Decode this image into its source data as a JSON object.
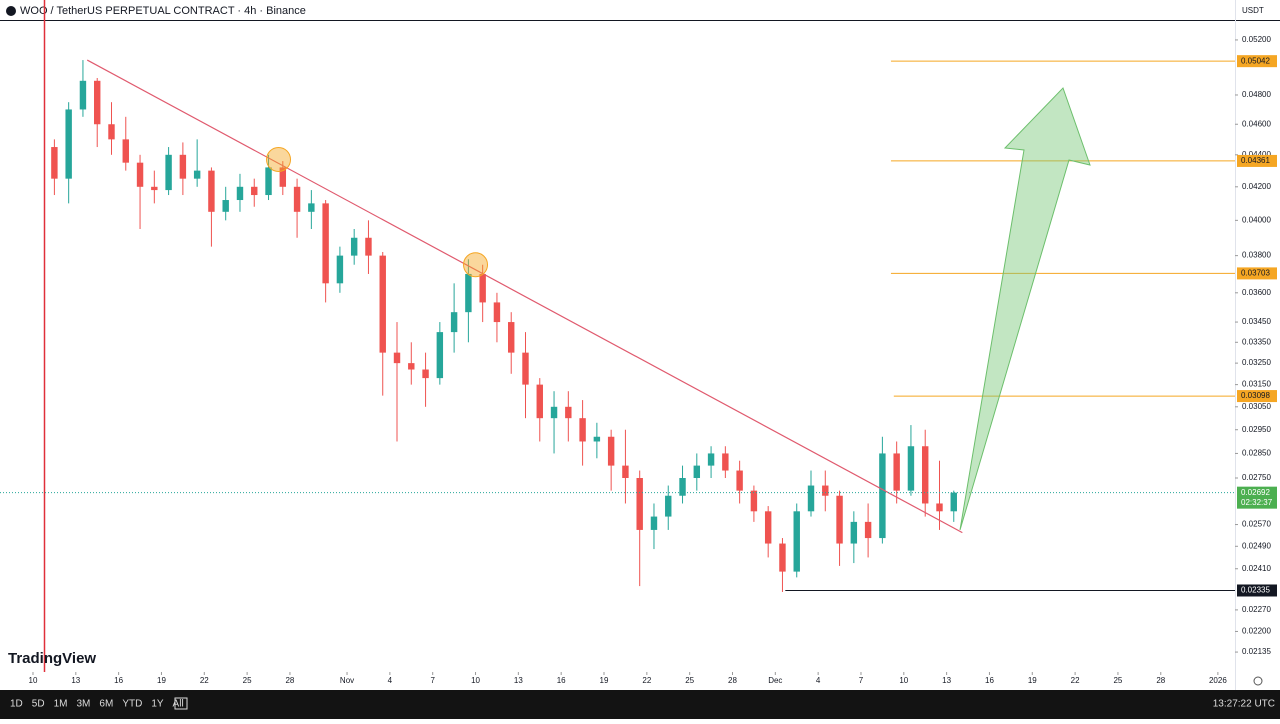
{
  "chart_data": {
    "type": "candlestick",
    "title": "WOO / TetherUS PERPETUAL CONTRACT · 4h · Binance",
    "currency": "USDT",
    "brand": "TradingView",
    "log_scale": true,
    "up_color": "#26a69a",
    "down_color": "#ef5350",
    "x": [
      1.5,
      2.5,
      3.5,
      4.5,
      5.5,
      6.5,
      7.5,
      8.5,
      9.5,
      10.5,
      11.5,
      12.5,
      13.5,
      14.5,
      15.5,
      16.5,
      17.5,
      18.5,
      19.5,
      20.5,
      21.5,
      22.5,
      23.5,
      24.5,
      25.5,
      26.5,
      27.5,
      28.5,
      29.5,
      30.5,
      31.5,
      32.5,
      33.5,
      34.5,
      35.5,
      36.5,
      37.5,
      38.5,
      39.5,
      40.5,
      41.5,
      42.5,
      43.5,
      44.5,
      45.5,
      46.5,
      47.5,
      48.5,
      49.5,
      50.5,
      51.5,
      52.5,
      53.5,
      54.5,
      55.5,
      56.5,
      57.5,
      58.5,
      59.5,
      60.5,
      61.5,
      62.5,
      63.5,
      64.5
    ],
    "open": [
      0.0445,
      0.0425,
      0.047,
      0.049,
      0.046,
      0.045,
      0.0435,
      0.042,
      0.0418,
      0.044,
      0.0425,
      0.043,
      0.0405,
      0.0412,
      0.042,
      0.0415,
      0.0432,
      0.042,
      0.0405,
      0.041,
      0.0365,
      0.038,
      0.039,
      0.038,
      0.033,
      0.0325,
      0.0322,
      0.0318,
      0.034,
      0.035,
      0.037,
      0.0355,
      0.0345,
      0.033,
      0.0315,
      0.03,
      0.0305,
      0.03,
      0.029,
      0.0292,
      0.028,
      0.0275,
      0.0255,
      0.026,
      0.0268,
      0.0275,
      0.028,
      0.0285,
      0.0278,
      0.027,
      0.0262,
      0.025,
      0.024,
      0.0262,
      0.0272,
      0.0268,
      0.025,
      0.0258,
      0.0252,
      0.0285,
      0.027,
      0.0288,
      0.0265,
      0.0262
    ],
    "high": [
      0.045,
      0.0475,
      0.0505,
      0.0492,
      0.0475,
      0.0465,
      0.044,
      0.043,
      0.0445,
      0.0448,
      0.045,
      0.0432,
      0.042,
      0.0428,
      0.0425,
      0.044,
      0.0436,
      0.0425,
      0.0418,
      0.0412,
      0.0385,
      0.0395,
      0.04,
      0.0382,
      0.0345,
      0.0335,
      0.033,
      0.0345,
      0.0365,
      0.0378,
      0.0375,
      0.036,
      0.035,
      0.034,
      0.0318,
      0.0312,
      0.0312,
      0.0308,
      0.0298,
      0.0295,
      0.0295,
      0.0278,
      0.0265,
      0.0272,
      0.028,
      0.0285,
      0.0288,
      0.0288,
      0.0282,
      0.0272,
      0.0264,
      0.0252,
      0.0265,
      0.0278,
      0.0278,
      0.027,
      0.0262,
      0.0265,
      0.0292,
      0.029,
      0.0297,
      0.0295,
      0.0282,
      0.027
    ],
    "low": [
      0.0415,
      0.041,
      0.0465,
      0.0445,
      0.044,
      0.043,
      0.0395,
      0.041,
      0.0415,
      0.0415,
      0.042,
      0.0385,
      0.04,
      0.0405,
      0.0408,
      0.0412,
      0.0415,
      0.039,
      0.0395,
      0.0355,
      0.036,
      0.0375,
      0.037,
      0.031,
      0.029,
      0.0315,
      0.0305,
      0.0315,
      0.033,
      0.0335,
      0.0345,
      0.0335,
      0.032,
      0.03,
      0.029,
      0.0285,
      0.029,
      0.028,
      0.0283,
      0.027,
      0.0265,
      0.0235,
      0.0248,
      0.0255,
      0.0265,
      0.027,
      0.0275,
      0.0275,
      0.0265,
      0.0258,
      0.0245,
      0.0233,
      0.0238,
      0.026,
      0.0262,
      0.0242,
      0.0243,
      0.0245,
      0.025,
      0.0265,
      0.0268,
      0.026,
      0.0255,
      0.0258
    ],
    "close": [
      0.0425,
      0.047,
      0.049,
      0.046,
      0.045,
      0.0435,
      0.042,
      0.0418,
      0.044,
      0.0425,
      0.043,
      0.0405,
      0.0412,
      0.042,
      0.0415,
      0.0432,
      0.042,
      0.0405,
      0.041,
      0.0365,
      0.038,
      0.039,
      0.038,
      0.033,
      0.0325,
      0.0322,
      0.0318,
      0.034,
      0.035,
      0.037,
      0.0355,
      0.0345,
      0.033,
      0.0315,
      0.03,
      0.0305,
      0.03,
      0.029,
      0.0292,
      0.028,
      0.0275,
      0.0255,
      0.026,
      0.0268,
      0.0275,
      0.028,
      0.0285,
      0.0278,
      0.027,
      0.0262,
      0.025,
      0.024,
      0.0262,
      0.0272,
      0.0268,
      0.025,
      0.0258,
      0.0252,
      0.0285,
      0.027,
      0.0288,
      0.0265,
      0.0262,
      0.02692
    ],
    "xlim": [
      -2.31,
      84.2
    ],
    "xticks": [
      {
        "value": 0,
        "label": "10"
      },
      {
        "value": 3,
        "label": "13"
      },
      {
        "value": 6,
        "label": "16"
      },
      {
        "value": 9,
        "label": "19"
      },
      {
        "value": 12,
        "label": "22"
      },
      {
        "value": 15,
        "label": "25"
      },
      {
        "value": 18,
        "label": "28"
      },
      {
        "value": 22,
        "label": "Nov"
      },
      {
        "value": 25,
        "label": "4"
      },
      {
        "value": 28,
        "label": "7"
      },
      {
        "value": 31,
        "label": "10"
      },
      {
        "value": 34,
        "label": "13"
      },
      {
        "value": 37,
        "label": "16"
      },
      {
        "value": 40,
        "label": "19"
      },
      {
        "value": 43,
        "label": "22"
      },
      {
        "value": 46,
        "label": "25"
      },
      {
        "value": 49,
        "label": "28"
      },
      {
        "value": 52,
        "label": "Dec"
      },
      {
        "value": 55,
        "label": "4"
      },
      {
        "value": 58,
        "label": "7"
      },
      {
        "value": 61,
        "label": "10"
      },
      {
        "value": 64,
        "label": "13"
      },
      {
        "value": 67,
        "label": "16"
      },
      {
        "value": 70,
        "label": "19"
      },
      {
        "value": 73,
        "label": "22"
      },
      {
        "value": 76,
        "label": "25"
      },
      {
        "value": 79,
        "label": "28"
      },
      {
        "value": 83,
        "label": "2026"
      }
    ],
    "ylim": [
      0.02074,
      0.05353
    ],
    "yticks": [
      {
        "value": 0.052,
        "label": "0.05200"
      },
      {
        "value": 0.048,
        "label": "0.04800"
      },
      {
        "value": 0.046,
        "label": "0.04600"
      },
      {
        "value": 0.044,
        "label": "0.04400"
      },
      {
        "value": 0.042,
        "label": "0.04200"
      },
      {
        "value": 0.04,
        "label": "0.04000"
      },
      {
        "value": 0.038,
        "label": "0.03800"
      },
      {
        "value": 0.036,
        "label": "0.03600"
      },
      {
        "value": 0.0345,
        "label": "0.03450"
      },
      {
        "value": 0.0335,
        "label": "0.03350"
      },
      {
        "value": 0.0325,
        "label": "0.03250"
      },
      {
        "value": 0.0315,
        "label": "0.03150"
      },
      {
        "value": 0.0305,
        "label": "0.03050"
      },
      {
        "value": 0.0295,
        "label": "0.02950"
      },
      {
        "value": 0.0285,
        "label": "0.02850"
      },
      {
        "value": 0.0275,
        "label": "0.02750"
      },
      {
        "value": 0.0257,
        "label": "0.02570"
      },
      {
        "value": 0.0249,
        "label": "0.02490"
      },
      {
        "value": 0.0241,
        "label": "0.02410"
      },
      {
        "value": 0.0227,
        "label": "0.02270"
      },
      {
        "value": 0.022,
        "label": "0.02200"
      },
      0.02135
    ],
    "levels": [
      {
        "value": 0.05042,
        "x": 60.1,
        "color": "#f5a623"
      },
      {
        "value": 0.04361,
        "x": 60.1,
        "color": "#f5a623"
      },
      {
        "value": 0.03703,
        "x": 60.1,
        "color": "#f5a623"
      },
      {
        "value": 0.03098,
        "x": 60.3,
        "color": "#f5a623"
      },
      {
        "value": 0.02335,
        "x": 52.7,
        "color": "#131722"
      }
    ],
    "last_price": 0.02692,
    "countdown": "02:32:37",
    "trendline": {
      "x": [
        3.8,
        65.1
      ],
      "values": [
        0.0505,
        0.0254
      ],
      "color": "#e05a6e"
    },
    "touches": {
      "x": [
        17.2,
        31.0
      ],
      "values": [
        0.0437,
        0.0375
      ]
    },
    "intervals": [
      "1D",
      "5D",
      "1M",
      "3M",
      "6M",
      "YTD",
      "1Y",
      "All"
    ],
    "clock": "13:27:22 UTC"
  }
}
